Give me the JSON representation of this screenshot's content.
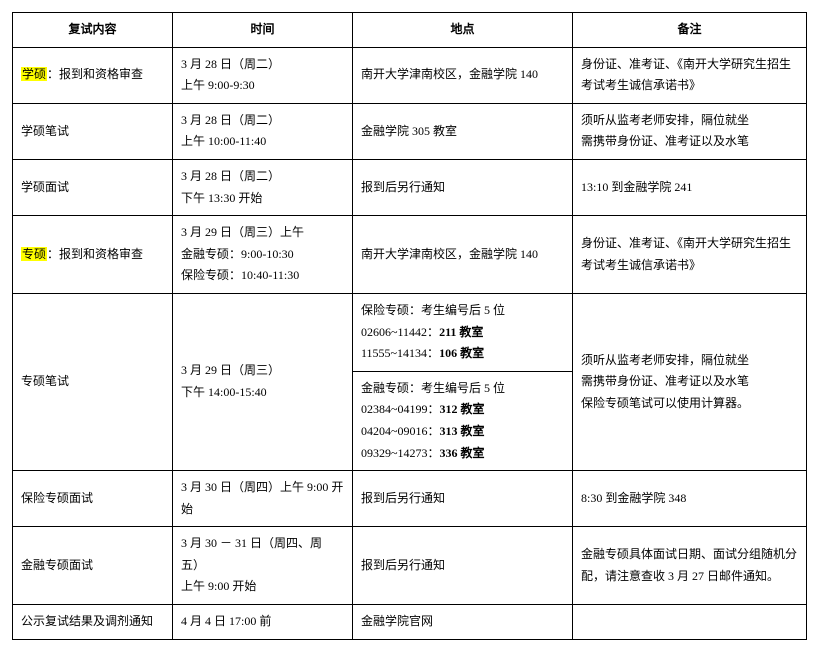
{
  "header": {
    "content": "复试内容",
    "time": "时间",
    "place": "地点",
    "note": "备注"
  },
  "rows": [
    {
      "content_hl": "学硕",
      "content_rest": "：报到和资格审查",
      "time_l1": "3 月 28 日（周二）",
      "time_l2": "上午 9:00-9:30",
      "place": "南开大学津南校区，金融学院 140",
      "note": "身份证、准考证、《南开大学研究生招生考试考生诚信承诺书》"
    },
    {
      "content": "学硕笔试",
      "time_l1": "3 月 28 日（周二）",
      "time_l2": "上午 10:00-11:40",
      "place": "金融学院 305 教室",
      "note_l1": "须听从监考老师安排，隔位就坐",
      "note_l2": "需携带身份证、准考证以及水笔"
    },
    {
      "content": "学硕面试",
      "time_l1": "3 月 28 日（周二）",
      "time_l2": "下午 13:30 开始",
      "place": "报到后另行通知",
      "note": "13:10 到金融学院 241"
    },
    {
      "content_hl": "专硕",
      "content_rest": "：报到和资格审查",
      "time_l1": "3 月 29 日（周三）上午",
      "time_l2": "金融专硕：9:00-10:30",
      "time_l3": "保险专硕：10:40-11:30",
      "place": "南开大学津南校区，金融学院 140",
      "note": "身份证、准考证、《南开大学研究生招生考试考生诚信承诺书》"
    },
    {
      "content": "专硕笔试",
      "time_l1": "3 月 29 日（周三）",
      "time_l2": "下午 14:00-15:40",
      "place1_l1_pre": "保险专硕：考生编号后 5 位",
      "place1_l2_a": "02606~11442：",
      "place1_l2_b": "211 教室",
      "place1_l3_a": "11555~14134：",
      "place1_l3_b": "106 教室",
      "place2_l1_pre": "金融专硕：考生编号后 5 位",
      "place2_l2_a": "02384~04199：",
      "place2_l2_b": "312 教室",
      "place2_l3_a": "04204~09016：",
      "place2_l3_b": "313 教室",
      "place2_l4_a": "09329~14273：",
      "place2_l4_b": "336 教室",
      "note_l1": "须听从监考老师安排，隔位就坐",
      "note_l2": "需携带身份证、准考证以及水笔",
      "note_l3": "保险专硕笔试可以使用计算器。"
    },
    {
      "content": "保险专硕面试",
      "time": "3 月 30 日（周四）上午 9:00 开始",
      "place": "报到后另行通知",
      "note": "8:30 到金融学院 348"
    },
    {
      "content": "金融专硕面试",
      "time_l1": "3 月 30 － 31 日（周四、周五）",
      "time_l2": "上午 9:00 开始",
      "place": "报到后另行通知",
      "note": "金融专硕具体面试日期、面试分组随机分配，请注意查收 3 月 27 日邮件通知。"
    },
    {
      "content": "公示复试结果及调剂通知",
      "time": "4 月 4 日 17:00 前",
      "place": "金融学院官网",
      "note": ""
    }
  ]
}
